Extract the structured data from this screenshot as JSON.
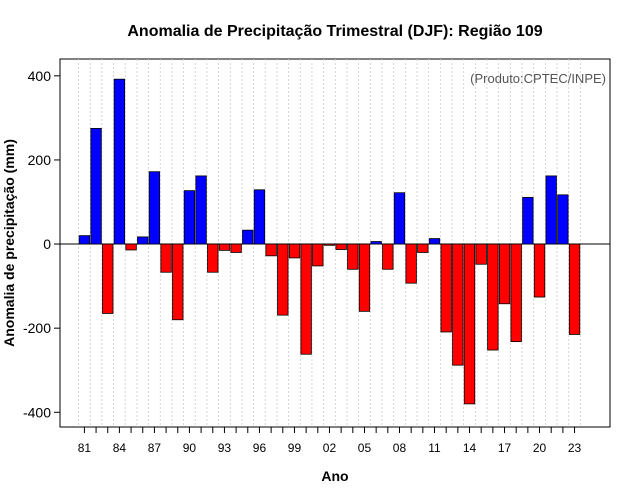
{
  "chart_data": {
    "type": "bar",
    "title": "Anomalia de Precipitação Trimestral (DJF): Região 109",
    "xlabel": "Ano",
    "ylabel": "Anomalia de precipitação (mm)",
    "annotation": "(Produto:CPTEC/INPE)",
    "ylim": [
      -435,
      440
    ],
    "yticks": [
      -400,
      -200,
      0,
      200,
      400
    ],
    "grid": "vertical dotted",
    "categories": [
      "81",
      "82",
      "83",
      "84",
      "85",
      "86",
      "87",
      "88",
      "89",
      "90",
      "91",
      "92",
      "93",
      "94",
      "95",
      "96",
      "97",
      "98",
      "99",
      "00",
      "01",
      "02",
      "03",
      "04",
      "05",
      "06",
      "07",
      "08",
      "09",
      "10",
      "11",
      "12",
      "13",
      "14",
      "15",
      "16",
      "17",
      "18",
      "19",
      "20",
      "21",
      "22",
      "23"
    ],
    "values": [
      20,
      275,
      -165,
      392,
      -14,
      17,
      172,
      -67,
      -180,
      127,
      162,
      -67,
      -15,
      -20,
      33,
      129,
      -28,
      -169,
      -33,
      -262,
      -52,
      -3,
      -13,
      -60,
      -160,
      6,
      -60,
      122,
      -93,
      -20,
      13,
      -209,
      -288,
      -380,
      -48,
      -252,
      -142,
      -232,
      111,
      -126,
      162,
      117,
      -215
    ],
    "xtick_labels": [
      "81",
      "84",
      "87",
      "90",
      "93",
      "96",
      "99",
      "02",
      "05",
      "08",
      "11",
      "14",
      "17",
      "20",
      "23"
    ],
    "colors": {
      "positive": "#0000ff",
      "negative": "#ff0000",
      "bar_border": "#000000",
      "grid": "#cccccc",
      "credit": "#555555"
    }
  }
}
